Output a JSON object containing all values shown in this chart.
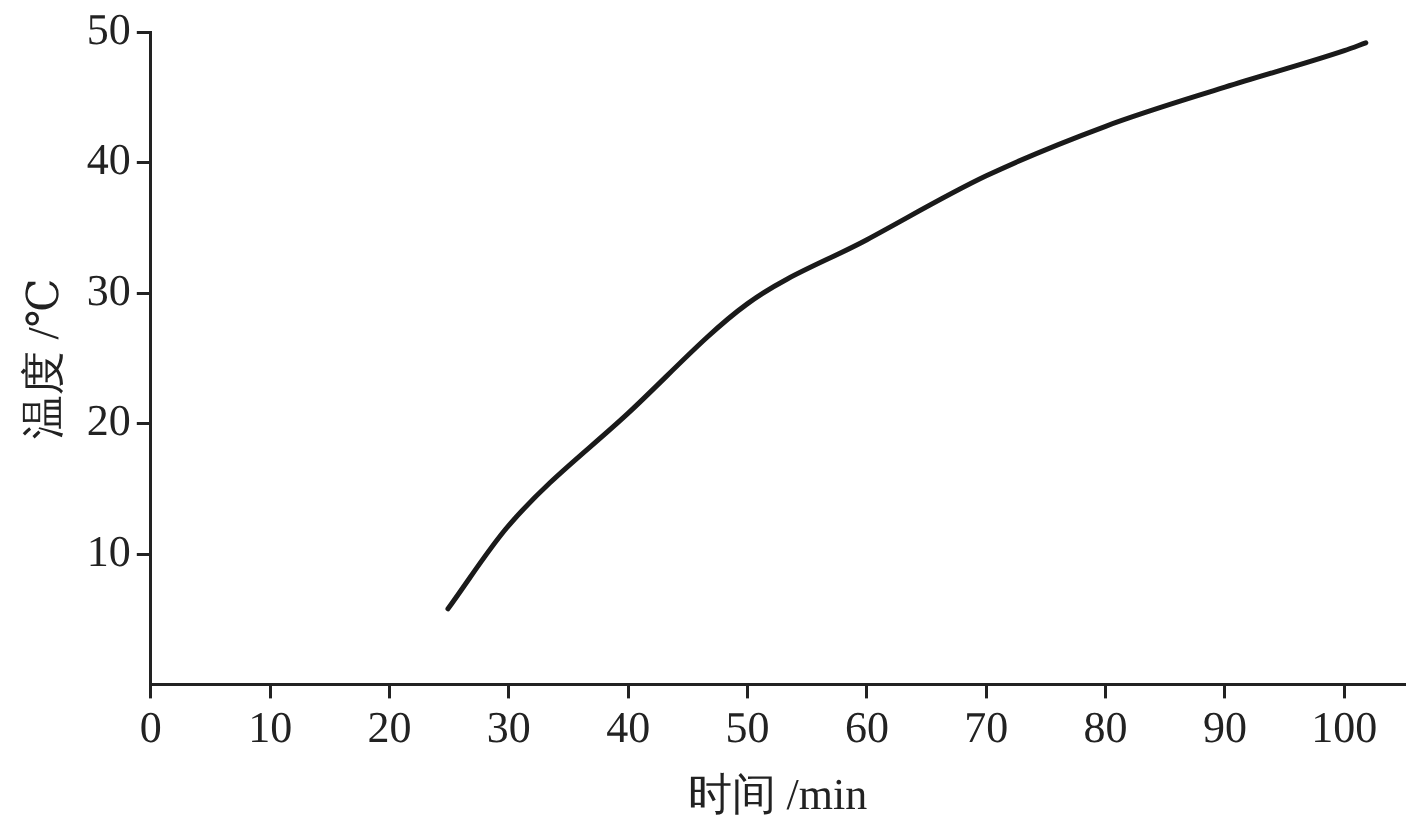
{
  "chart_data": {
    "type": "line",
    "xlabel": "时间 /min",
    "ylabel": "温度 /℃",
    "x": [
      24.9,
      30,
      40,
      50,
      60,
      70,
      80,
      90,
      100,
      101.8
    ],
    "series": [
      {
        "color": "#1a1a1a",
        "values": [
          5.8,
          12.2,
          20.8,
          29.2,
          34.1,
          39.0,
          42.8,
          45.8,
          48.6,
          49.2
        ]
      }
    ],
    "xlim": [
      0,
      105
    ],
    "xticks": [
      0,
      10,
      20,
      30,
      40,
      50,
      60,
      70,
      80,
      90,
      100
    ],
    "ylim": [
      0,
      50
    ],
    "yticks": [
      10,
      20,
      30,
      40,
      50
    ],
    "grid": false,
    "legend": false,
    "marker": "none",
    "line_style": "solid"
  }
}
